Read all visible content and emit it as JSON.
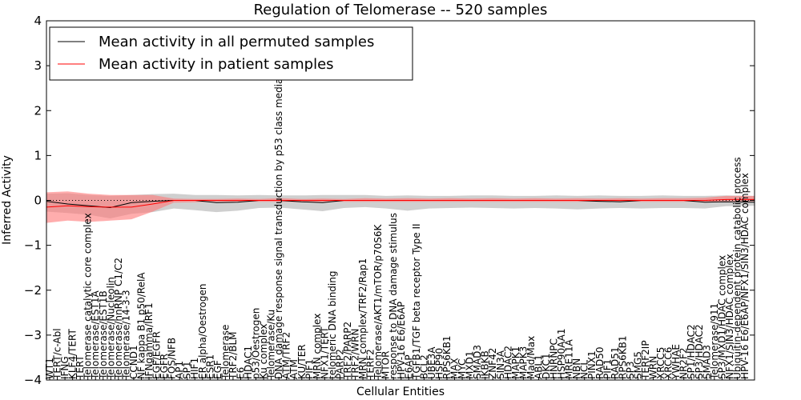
{
  "chart_data": {
    "type": "line",
    "title": "Regulation of Telomerase -- 520 samples",
    "xlabel": "Cellular Entities",
    "ylabel": "Inferred Activity",
    "ylim": [
      -4,
      4
    ],
    "yticks": [
      -4,
      -3,
      -2,
      -1,
      0,
      1,
      2,
      3,
      4
    ],
    "ytick_labels": [
      "−4",
      "−3",
      "−2",
      "−1",
      "0",
      "1",
      "2",
      "3",
      "4"
    ],
    "grid": false,
    "legend_position": "top-left",
    "reference_line": 0,
    "colors": {
      "permuted": "#000000",
      "patient": "#ff0000",
      "permuted_band": "#bfbfbf",
      "patient_band": "#ff7777"
    },
    "categories": [
      "WT1",
      "TERT/c-Abl",
      "IFNG",
      "KLF4/TERT",
      "TERT",
      "Telomerase catalytic core complex",
      "Telomerase/EST1A",
      "Telomerase/EST1B",
      "Telomerase/Nucleolin",
      "Telomerase/hnRNP C1/C2",
      "Telomerase/14-3-3",
      "CCND1",
      "NF kappa B1 p50/RelA",
      "IFNgamma/IRF1",
      "EGF/EGFR",
      "EGFR",
      "FOS/NFB",
      "AP1",
      "SP1",
      "HIF1",
      "ER alpha/Oestrogen",
      "ESR1",
      "EGF",
      "Telomerase",
      "TRF2/BLM",
      "E6",
      "HDAC1",
      "p53/Oestrogen",
      "Ku complex",
      "Telomerase/Ku",
      "DNA damage response signal transduction by p53 class mediator",
      "ATM/TRF2",
      "ATM",
      "KU/TER",
      "PIF1",
      "MRN complex",
      "NFX1/TERT",
      "telomeric DNA binding",
      "PARP2",
      "TRF2/PARP2",
      "TRF2/WRN",
      "MRN complex/TRF2/Rap1",
      "TERF2",
      "Telomerase/AKT1/mTOR/p70S6K",
      "MTOR",
      "response to DNA damage stimulus",
      "HPV-16 E6/E6AP",
      "E6AP",
      "TGFB1/TGF beta receptor Type II",
      "BCL2",
      "UBE3A",
      "HSP90",
      "RPS6KB1",
      "MAX",
      "MYC",
      "MXD1",
      "SMAD3",
      "IKBKB",
      "ZNF42",
      "SIN3A",
      "HDAC2",
      "MAPK1",
      "MAPK3",
      "Mad/Max",
      "ABL1",
      "DKC1",
      "HNRNPC",
      "HSP90AA1",
      "MRE11A",
      "NBN",
      "NCL",
      "PINX1",
      "RAD50",
      "PIF1",
      "RAD51",
      "RPS6KB1",
      "SP3",
      "SMG5",
      "TERF2IP",
      "WRN",
      "XRCC5",
      "XRCC6",
      "YWHAE",
      "NR2F2",
      "SP1/HDAC2",
      "SP3/HDAC2",
      "SMAD3",
      "Telomerase/911",
      "SP3/MXD1/HDAC complex",
      "NFX1/SIN3/HDAC complex",
      "Ubiquitin-dependent protein catabolic process",
      "HPV-16 E6/E6AP/NFX1/SIN3/HDAC complex"
    ],
    "series": [
      {
        "name": "Mean activity in all permuted samples",
        "color": "#000000",
        "x": [
          0,
          0.03,
          0.06,
          0.09,
          0.12,
          0.15,
          0.18,
          0.21,
          0.24,
          0.27,
          0.3,
          0.33,
          0.36,
          0.39,
          0.42,
          0.45,
          0.48,
          0.51,
          0.54,
          0.57,
          0.6,
          0.63,
          0.66,
          0.69,
          0.72,
          0.75,
          0.78,
          0.81,
          0.84,
          0.87,
          0.9,
          0.93,
          0.96,
          1
        ],
        "values": [
          -0.02,
          -0.08,
          -0.12,
          -0.16,
          -0.05,
          -0.02,
          0,
          0,
          -0.05,
          -0.04,
          0,
          0,
          -0.03,
          -0.05,
          0,
          0,
          0,
          0,
          0,
          0,
          0,
          0,
          0,
          0,
          0,
          0,
          -0.02,
          -0.03,
          0,
          0,
          0,
          -0.04,
          -0.03,
          -0.04
        ],
        "band_low": [
          -0.25,
          -0.28,
          -0.32,
          -0.4,
          -0.3,
          -0.26,
          -0.18,
          -0.22,
          -0.26,
          -0.23,
          -0.17,
          -0.16,
          -0.2,
          -0.24,
          -0.17,
          -0.15,
          -0.18,
          -0.23,
          -0.18,
          -0.17,
          -0.16,
          -0.17,
          -0.18,
          -0.17,
          -0.18,
          -0.2,
          -0.18,
          -0.17,
          -0.18,
          -0.17,
          -0.17,
          -0.18,
          -0.13,
          -0.12
        ],
        "band_high": [
          0.15,
          0.16,
          0.12,
          0.1,
          0.12,
          0.14,
          0.15,
          0.12,
          0.12,
          0.11,
          0.12,
          0.11,
          0.11,
          0.12,
          0.12,
          0.12,
          0.1,
          0.11,
          0.1,
          0.1,
          0.11,
          0.11,
          0.1,
          0.1,
          0.11,
          0.1,
          0.11,
          0.1,
          0.1,
          0.11,
          0.1,
          0.1,
          0.11,
          0.1
        ]
      },
      {
        "name": "Mean activity in patient samples",
        "color": "#ff0000",
        "x": [
          0,
          0.03,
          0.06,
          0.09,
          0.12,
          0.15,
          0.18,
          0.21,
          0.24,
          0.27,
          0.3,
          0.33,
          0.36,
          0.39,
          0.42,
          0.45,
          0.48,
          0.51,
          0.54,
          0.57,
          0.6,
          0.63,
          0.66,
          0.69,
          0.72,
          0.75,
          0.78,
          0.81,
          0.84,
          0.87,
          0.9,
          0.93,
          0.96,
          1
        ],
        "values": [
          -0.15,
          -0.12,
          -0.14,
          -0.15,
          -0.15,
          -0.08,
          0,
          0,
          0,
          0,
          0,
          0,
          0,
          0,
          0,
          0,
          0,
          0,
          0,
          0,
          0,
          0,
          0,
          0,
          0,
          0,
          0,
          0,
          0,
          0,
          0,
          0,
          0.02,
          0.02
        ],
        "band_low": [
          -0.5,
          -0.45,
          -0.48,
          -0.45,
          -0.42,
          -0.25,
          -0.05,
          -0.04,
          -0.03,
          -0.03,
          -0.03,
          -0.03,
          -0.04,
          -0.03,
          -0.03,
          -0.03,
          -0.03,
          -0.03,
          -0.03,
          -0.03,
          -0.03,
          -0.03,
          -0.03,
          -0.03,
          -0.03,
          -0.03,
          -0.03,
          -0.03,
          -0.03,
          -0.03,
          -0.03,
          -0.03,
          -0.02,
          -0.02
        ],
        "band_high": [
          0.18,
          0.2,
          0.15,
          0.12,
          0.12,
          0.12,
          0.04,
          0.03,
          0.03,
          0.04,
          0.03,
          0.05,
          0.03,
          0.04,
          0.03,
          0.05,
          0.04,
          0.05,
          0.04,
          0.05,
          0.04,
          0.05,
          0.04,
          0.05,
          0.04,
          0.05,
          0.04,
          0.05,
          0.04,
          0.05,
          0.05,
          0.06,
          0.1,
          0.1
        ]
      }
    ]
  }
}
